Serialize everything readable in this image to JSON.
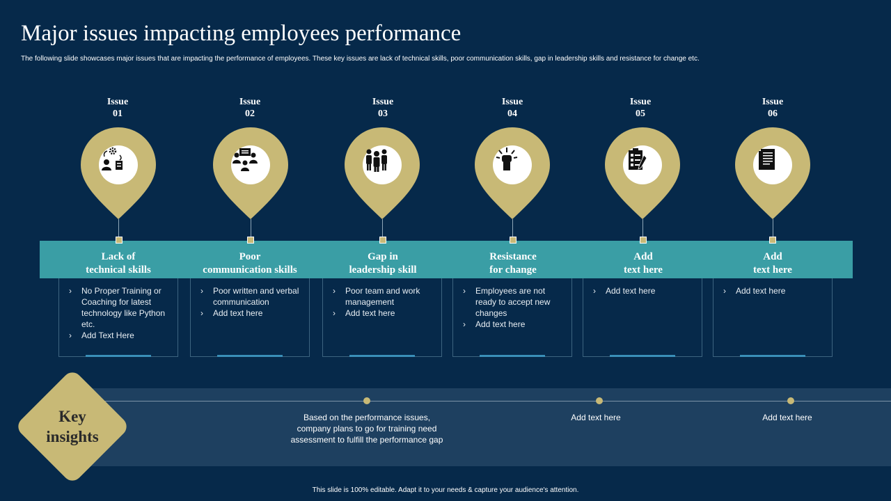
{
  "title": "Major issues impacting employees performance",
  "subtitle": "The following slide showcases major issues that are impacting the performance of employees. These key issues are lack of technical skills, poor communication skills, gap in leadership skills and resistance for change etc.",
  "colors": {
    "background": "#06294a",
    "gold": "#c8b976",
    "teal": "#3a9ea5",
    "insight_band": "#1e4060"
  },
  "issues": [
    {
      "label_top": "Issue",
      "label_num": "01",
      "icon": "people-gear-icon",
      "category_line1": "Lack of",
      "category_line2": "technical skills",
      "bullets": [
        "No Proper Training or Coaching for latest technology like Python etc.",
        "Add Text Here"
      ]
    },
    {
      "label_top": "Issue",
      "label_num": "02",
      "icon": "discussion-icon",
      "category_line1": "Poor",
      "category_line2": "communication skills",
      "bullets": [
        "Poor written and verbal communication",
        "Add text here"
      ]
    },
    {
      "label_top": "Issue",
      "label_num": "03",
      "icon": "team-icon",
      "category_line1": "Gap in",
      "category_line2": "leadership skill",
      "bullets": [
        "Poor team and work management",
        "Add text here"
      ]
    },
    {
      "label_top": "Issue",
      "label_num": "04",
      "icon": "raised-fist-icon",
      "category_line1": "Resistance",
      "category_line2": "for change",
      "bullets": [
        "Employees are not ready to accept new changes",
        "Add text here"
      ]
    },
    {
      "label_top": "Issue",
      "label_num": "05",
      "icon": "checklist-icon",
      "category_line1": "Add",
      "category_line2": "text here",
      "bullets": [
        "Add text here"
      ]
    },
    {
      "label_top": "Issue",
      "label_num": "06",
      "icon": "document-icon",
      "category_line1": "Add",
      "category_line2": "text here",
      "bullets": [
        "Add text here"
      ]
    }
  ],
  "key_insights": {
    "label_line1": "Key",
    "label_line2": "insights",
    "items": [
      "Based on the performance  issues, company plans to go for training need assessment to fulfill the performance gap",
      "Add text here",
      "Add text here"
    ]
  },
  "footer": "This slide is 100% editable.  Adapt it to your needs & capture your audience's attention."
}
